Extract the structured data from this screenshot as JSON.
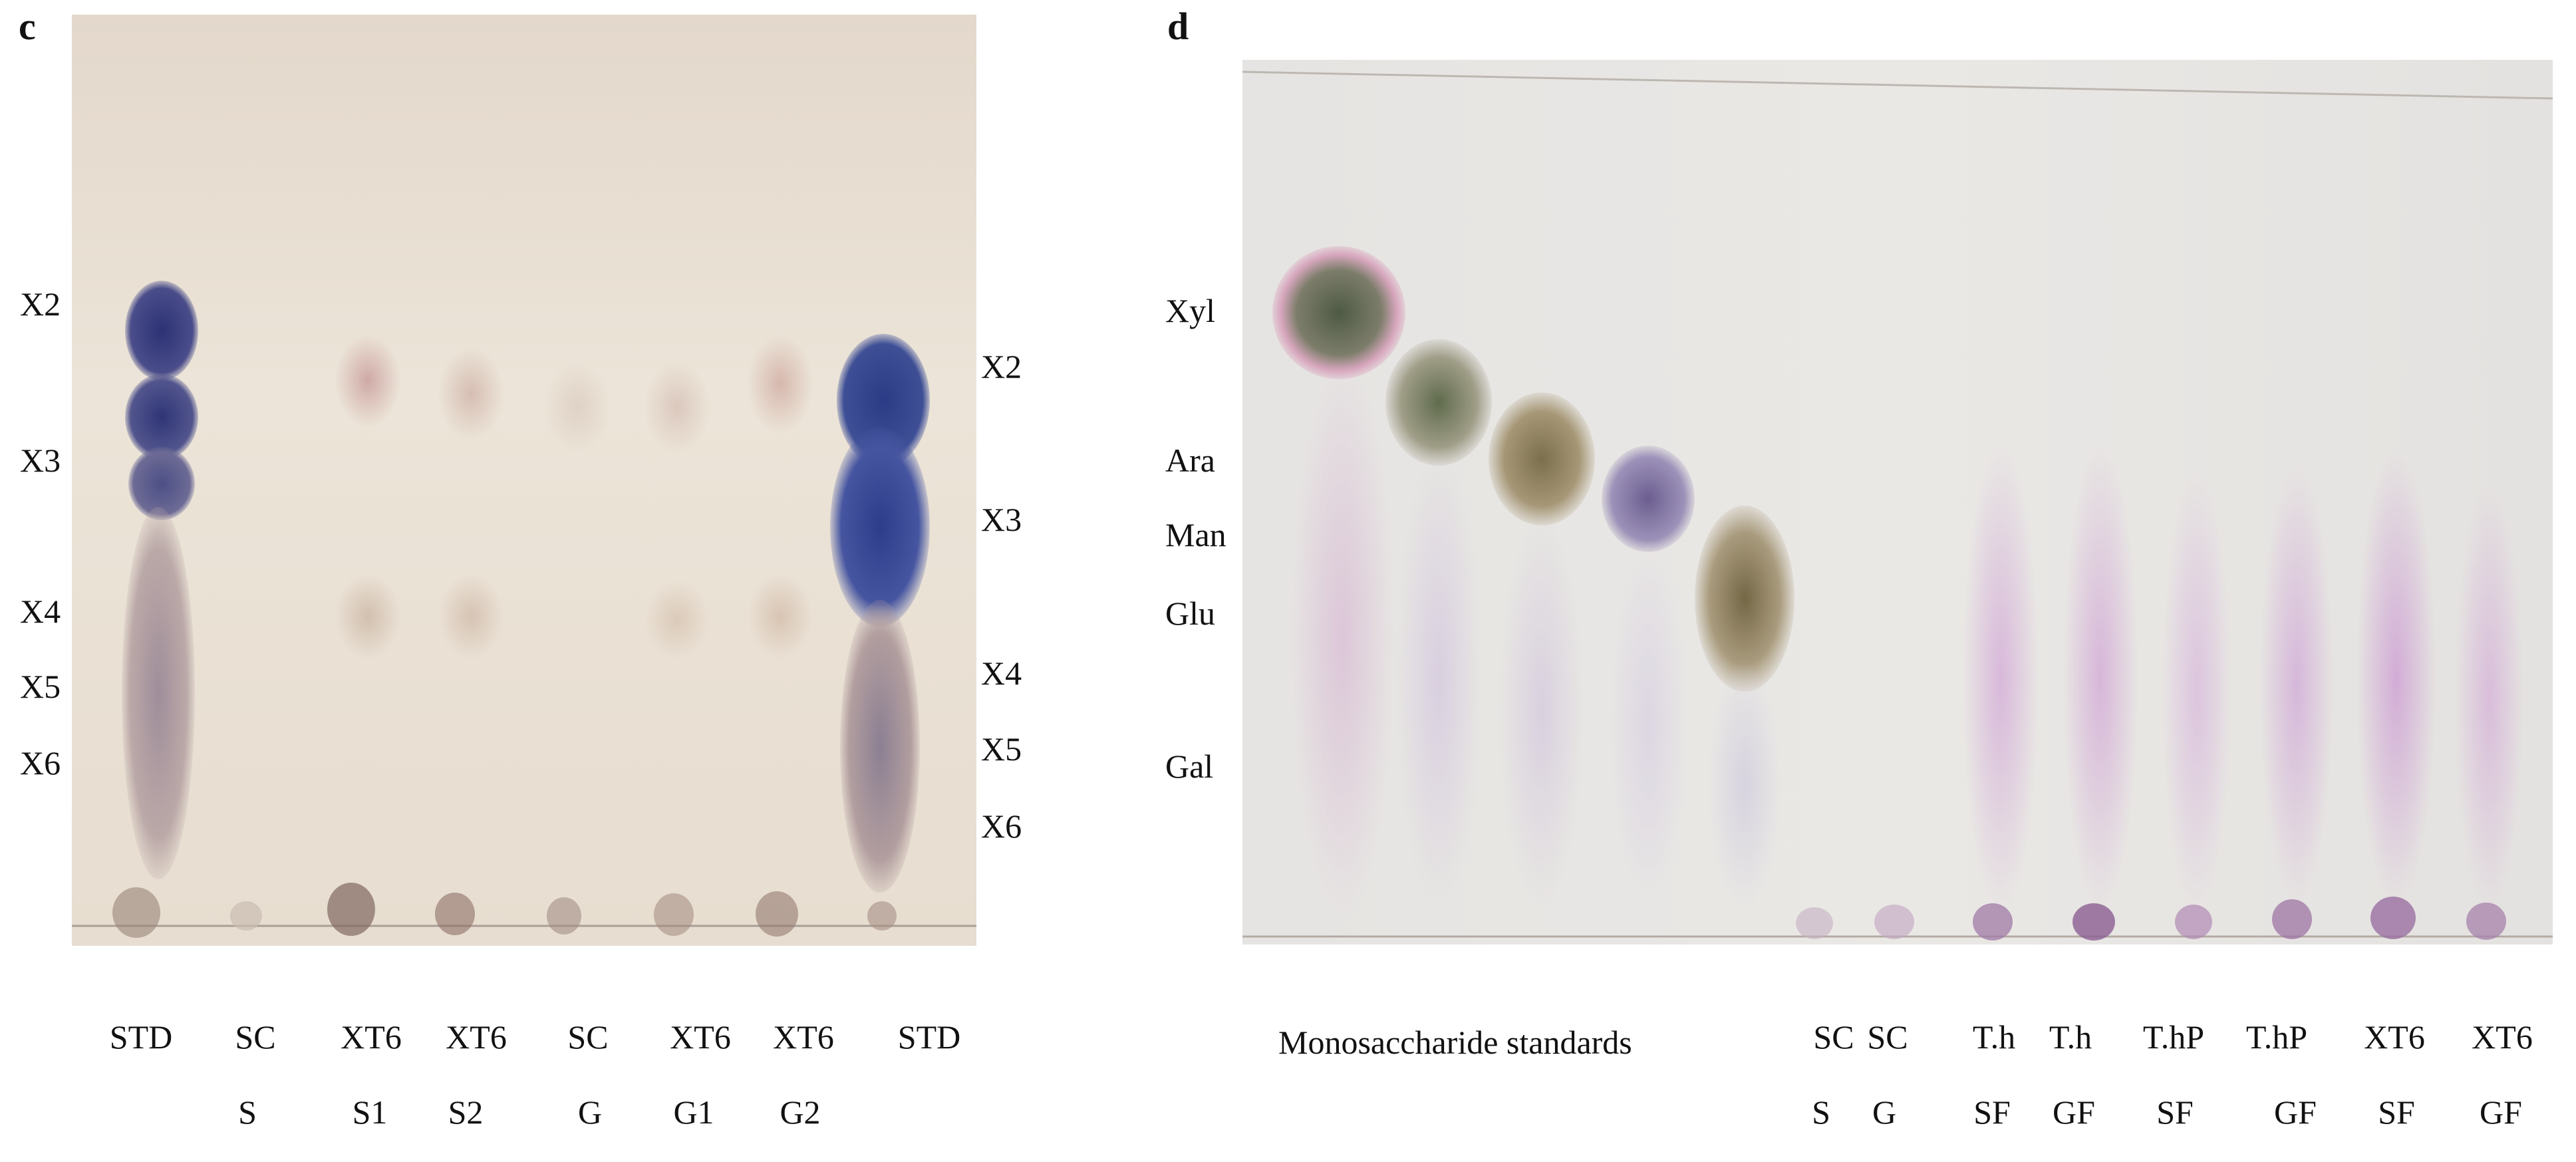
{
  "panel_c": {
    "letter": "c",
    "left_markers": [
      "X2",
      "X3",
      "X4",
      "X5",
      "X6"
    ],
    "right_markers": [
      "X2",
      "X3",
      "X4",
      "X5",
      "X6"
    ],
    "lanes_top": [
      "STD",
      "SC",
      "XT6",
      "XT6",
      "SC",
      "XT6",
      "XT6",
      "STD"
    ],
    "lanes_bottom": [
      "S",
      "S1",
      "S2",
      "G",
      "G1",
      "G2"
    ]
  },
  "panel_d": {
    "letter": "d",
    "left_markers": [
      "Xyl",
      "Ara",
      "Man",
      "Glu",
      "Gal"
    ],
    "standards_label": "Monosaccharide standards",
    "lanes_top": [
      "SC",
      "SC",
      "T.h",
      "T.h",
      "T.hP",
      "T.hP",
      "XT6",
      "XT6"
    ],
    "lanes_bottom": [
      "S",
      "G",
      "SF",
      "GF",
      "SF",
      "GF",
      "SF",
      "GF"
    ]
  },
  "colors": {
    "plate_c_background": "#e9e0d3",
    "plate_d_background": "#e8e6e4",
    "std_spot": "#2a2f73",
    "sample_spot_c": "#c9aca0",
    "sample_spot_d": "#c69ac9"
  }
}
